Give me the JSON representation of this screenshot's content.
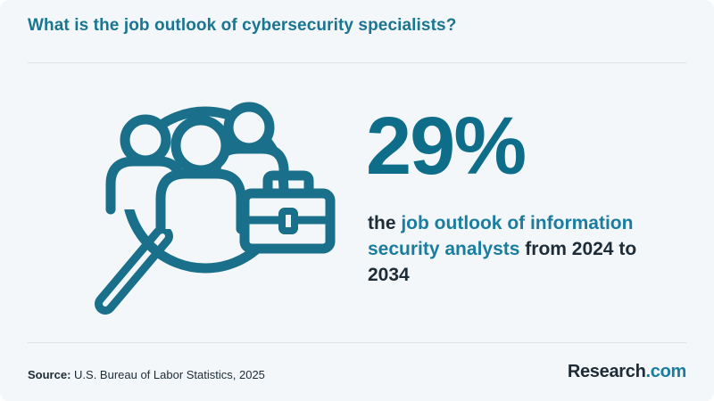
{
  "header": {
    "title": "What is the job outlook of cybersecurity specialists?"
  },
  "stat": {
    "value": "29%",
    "desc_lead": "the ",
    "desc_highlight": "job outlook of information security analysts",
    "desc_tail": " from 2024 to 2034"
  },
  "footer": {
    "source_label": "Source:",
    "source_text": " U.S. Bureau of Labor Statistics, 2025",
    "logo_main": "Research",
    "logo_suffix": ".com"
  },
  "colors": {
    "background": "#f3f7f9",
    "accent": "#1a7590",
    "icon_stroke": "#1a6f8a",
    "text": "#1d2c36"
  },
  "icons": [
    "magnifier-people-icon",
    "briefcase-icon"
  ]
}
